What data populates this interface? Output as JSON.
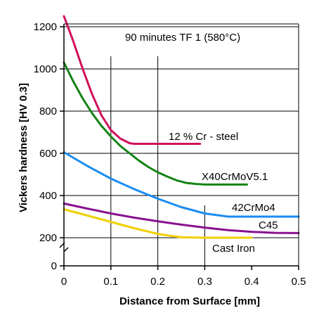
{
  "chart_data": {
    "type": "line",
    "title": "90 minutes TF 1 (580°C)",
    "xlabel": "Distance from Surface [mm]",
    "ylabel": "Vickers hardness [HV 0.3]",
    "xlim": [
      0,
      0.5
    ],
    "ylim": [
      0,
      1300
    ],
    "y_axis_break": true,
    "x_ticks": [
      0,
      0.1,
      0.2,
      0.3,
      0.4,
      0.5
    ],
    "x_tick_labels": [
      "0",
      "0.1",
      "0.2",
      "0.3",
      "0.4",
      "0.5"
    ],
    "y_ticks": [
      0,
      200,
      400,
      600,
      800,
      1000,
      1200
    ],
    "y_tick_labels": [
      "0",
      "200",
      "400",
      "600",
      "800",
      "1000",
      "1200"
    ],
    "grid": "partial",
    "legend": "inline labels",
    "series": [
      {
        "name": "12 % Cr - steel",
        "color": "#d0105a",
        "x": [
          0,
          0.02,
          0.04,
          0.06,
          0.08,
          0.1,
          0.12,
          0.14,
          0.15,
          0.2,
          0.29
        ],
        "y": [
          1250,
          1130,
          1000,
          880,
          780,
          710,
          670,
          648,
          645,
          645,
          645
        ]
      },
      {
        "name": "X40CrMoV5.1",
        "color": "#148214",
        "x": [
          0,
          0.02,
          0.04,
          0.06,
          0.08,
          0.1,
          0.12,
          0.14,
          0.16,
          0.18,
          0.2,
          0.22,
          0.24,
          0.26,
          0.28,
          0.3,
          0.39
        ],
        "y": [
          1030,
          940,
          860,
          790,
          730,
          680,
          635,
          600,
          565,
          535,
          510,
          490,
          472,
          460,
          455,
          452,
          452
        ]
      },
      {
        "name": "42CrMo4",
        "color": "#1a8cf0",
        "x": [
          0,
          0.05,
          0.1,
          0.15,
          0.2,
          0.25,
          0.3,
          0.35,
          0.4,
          0.5
        ],
        "y": [
          605,
          540,
          480,
          430,
          385,
          345,
          315,
          300,
          300,
          300
        ]
      },
      {
        "name": "C45",
        "color": "#8a1090",
        "x": [
          0,
          0.05,
          0.1,
          0.15,
          0.2,
          0.25,
          0.3,
          0.35,
          0.4,
          0.45,
          0.5
        ],
        "y": [
          362,
          338,
          315,
          295,
          278,
          262,
          248,
          236,
          228,
          223,
          222
        ]
      },
      {
        "name": "Cast Iron",
        "color": "#f0d000",
        "x": [
          0,
          0.05,
          0.1,
          0.15,
          0.2,
          0.25,
          0.3,
          0.4
        ],
        "y": [
          335,
          305,
          275,
          245,
          218,
          202,
          200,
          200
        ]
      }
    ]
  }
}
